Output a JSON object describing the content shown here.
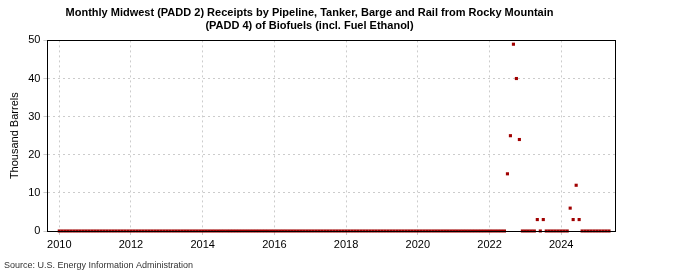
{
  "chart_data": {
    "type": "scatter",
    "title": [
      "Monthly Midwest (PADD 2) Receipts by Pipeline, Tanker, Barge and Rail from Rocky Mountain",
      "(PADD 4) of Biofuels (incl. Fuel Ethanol)"
    ],
    "y_label": "Thousand Barrels",
    "source": "Source: U.S. Energy Information Administration",
    "color": "#a00000",
    "marker": "square",
    "grid": true,
    "x": [
      2010,
      2010.083,
      2010.167,
      2010.25,
      2010.333,
      2010.417,
      2010.5,
      2010.583,
      2010.667,
      2010.75,
      2010.833,
      2010.917,
      2011,
      2011.083,
      2011.167,
      2011.25,
      2011.333,
      2011.417,
      2011.5,
      2011.583,
      2011.667,
      2011.75,
      2011.833,
      2011.917,
      2012,
      2012.083,
      2012.167,
      2012.25,
      2012.333,
      2012.417,
      2012.5,
      2012.583,
      2012.667,
      2012.75,
      2012.833,
      2012.917,
      2013,
      2013.083,
      2013.167,
      2013.25,
      2013.333,
      2013.417,
      2013.5,
      2013.583,
      2013.667,
      2013.75,
      2013.833,
      2013.917,
      2014,
      2014.083,
      2014.167,
      2014.25,
      2014.333,
      2014.417,
      2014.5,
      2014.583,
      2014.667,
      2014.75,
      2014.833,
      2014.917,
      2015,
      2015.083,
      2015.167,
      2015.25,
      2015.333,
      2015.417,
      2015.5,
      2015.583,
      2015.667,
      2015.75,
      2015.833,
      2015.917,
      2016,
      2016.083,
      2016.167,
      2016.25,
      2016.333,
      2016.417,
      2016.5,
      2016.583,
      2016.667,
      2016.75,
      2016.833,
      2016.917,
      2017,
      2017.083,
      2017.167,
      2017.25,
      2017.333,
      2017.417,
      2017.5,
      2017.583,
      2017.667,
      2017.75,
      2017.833,
      2017.917,
      2018,
      2018.083,
      2018.167,
      2018.25,
      2018.333,
      2018.417,
      2018.5,
      2018.583,
      2018.667,
      2018.75,
      2018.833,
      2018.917,
      2019,
      2019.083,
      2019.167,
      2019.25,
      2019.333,
      2019.417,
      2019.5,
      2019.583,
      2019.667,
      2019.75,
      2019.833,
      2019.917,
      2020,
      2020.083,
      2020.167,
      2020.25,
      2020.333,
      2020.417,
      2020.5,
      2020.583,
      2020.667,
      2020.75,
      2020.833,
      2020.917,
      2021,
      2021.083,
      2021.167,
      2021.25,
      2021.333,
      2021.417,
      2021.5,
      2021.583,
      2021.667,
      2021.75,
      2021.833,
      2021.917,
      2022,
      2022.083,
      2022.167,
      2022.25,
      2022.333,
      2022.417,
      2022.5,
      2022.583,
      2022.667,
      2022.75,
      2022.833,
      2022.917,
      2023,
      2023.083,
      2023.167,
      2023.25,
      2023.333,
      2023.417,
      2023.5,
      2023.583,
      2023.667,
      2023.75,
      2023.833,
      2023.917,
      2024,
      2024.083,
      2024.167,
      2024.25,
      2024.333,
      2024.417,
      2024.5,
      2024.583,
      2024.667,
      2024.75,
      2024.833,
      2024.917,
      2025,
      2025.083,
      2025.167,
      2025.25,
      2025.333
    ],
    "values": [
      0,
      0,
      0,
      0,
      0,
      0,
      0,
      0,
      0,
      0,
      0,
      0,
      0,
      0,
      0,
      0,
      0,
      0,
      0,
      0,
      0,
      0,
      0,
      0,
      0,
      0,
      0,
      0,
      0,
      0,
      0,
      0,
      0,
      0,
      0,
      0,
      0,
      0,
      0,
      0,
      0,
      0,
      0,
      0,
      0,
      0,
      0,
      0,
      0,
      0,
      0,
      0,
      0,
      0,
      0,
      0,
      0,
      0,
      0,
      0,
      0,
      0,
      0,
      0,
      0,
      0,
      0,
      0,
      0,
      0,
      0,
      0,
      0,
      0,
      0,
      0,
      0,
      0,
      0,
      0,
      0,
      0,
      0,
      0,
      0,
      0,
      0,
      0,
      0,
      0,
      0,
      0,
      0,
      0,
      0,
      0,
      0,
      0,
      0,
      0,
      0,
      0,
      0,
      0,
      0,
      0,
      0,
      0,
      0,
      0,
      0,
      0,
      0,
      0,
      0,
      0,
      0,
      0,
      0,
      0,
      0,
      0,
      0,
      0,
      0,
      0,
      0,
      0,
      0,
      0,
      0,
      0,
      0,
      0,
      0,
      0,
      0,
      0,
      0,
      0,
      0,
      0,
      0,
      0,
      0,
      0,
      0,
      0,
      0,
      0,
      15,
      25,
      49,
      40,
      24,
      0,
      0,
      0,
      0,
      0,
      3,
      0,
      3,
      0,
      0,
      0,
      0,
      0,
      0,
      0,
      0,
      6,
      3,
      12,
      3,
      0,
      0,
      0,
      0,
      0,
      0,
      0,
      0,
      0,
      0
    ],
    "xlim": [
      2009.67,
      2025.5
    ],
    "xticks": [
      2010,
      2012,
      2014,
      2016,
      2018,
      2020,
      2022,
      2024
    ],
    "ylim": [
      0,
      50
    ],
    "yticks": [
      0,
      10,
      20,
      30,
      40,
      50
    ]
  }
}
